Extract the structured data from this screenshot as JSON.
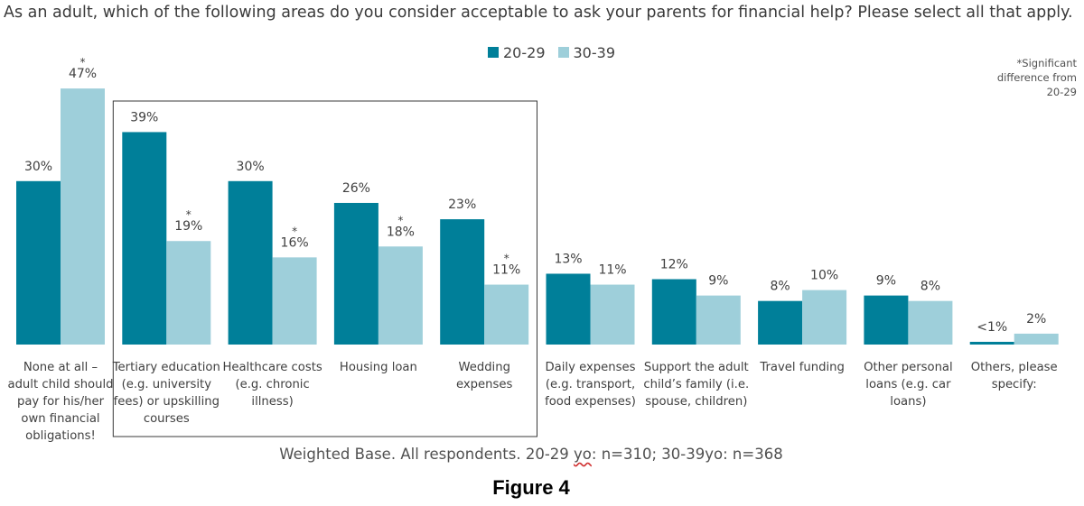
{
  "question": "As an adult, which of the following areas do you consider acceptable to ask your parents for financial help? Please select all that apply.",
  "significance_note": [
    "*Significant",
    "difference from",
    "20-29"
  ],
  "footer": {
    "pre": "Weighted Base. All respondents. 20-29 ",
    "yo": "yo",
    "post": ": n=310; 30-39yo: n=368"
  },
  "figure_caption": "Figure 4",
  "colors": {
    "series_20_29": "#007f99",
    "series_30_39": "#9ecfda"
  },
  "chart_data": {
    "type": "bar",
    "ylim": [
      0,
      50
    ],
    "categories": [
      [
        "None at all –",
        "adult child should",
        "pay for his/her",
        "own financial",
        "obligations!"
      ],
      [
        "Tertiary education",
        "(e.g. university",
        "fees) or upskilling",
        "courses"
      ],
      [
        "Healthcare costs",
        "(e.g. chronic",
        "illness)"
      ],
      [
        "Housing loan"
      ],
      [
        "Wedding",
        "expenses"
      ],
      [
        "Daily expenses",
        "(e.g. transport,",
        "food expenses)"
      ],
      [
        "Support the adult",
        "child’s family (i.e.",
        "spouse, children)"
      ],
      [
        "Travel funding"
      ],
      [
        "Other personal",
        "loans (e.g. car",
        "loans)"
      ],
      [
        "Others, please",
        "specify:"
      ]
    ],
    "series": [
      {
        "name": "20-29",
        "values": [
          30,
          39,
          30,
          26,
          23,
          13,
          12,
          8,
          9,
          0.5
        ],
        "labels": [
          "30%",
          "39%",
          "30%",
          "26%",
          "23%",
          "13%",
          "12%",
          "8%",
          "9%",
          "<1%"
        ],
        "significant": [
          false,
          false,
          false,
          false,
          false,
          false,
          false,
          false,
          false,
          false
        ]
      },
      {
        "name": "30-39",
        "values": [
          47,
          19,
          16,
          18,
          11,
          11,
          9,
          10,
          8,
          2
        ],
        "labels": [
          "47%",
          "19%",
          "16%",
          "18%",
          "11%",
          "11%",
          "9%",
          "10%",
          "8%",
          "2%"
        ],
        "significant": [
          true,
          true,
          true,
          true,
          true,
          false,
          false,
          false,
          false,
          false
        ]
      }
    ],
    "significance_marker": "*",
    "highlighted_categories": [
      1,
      2,
      3,
      4
    ]
  }
}
